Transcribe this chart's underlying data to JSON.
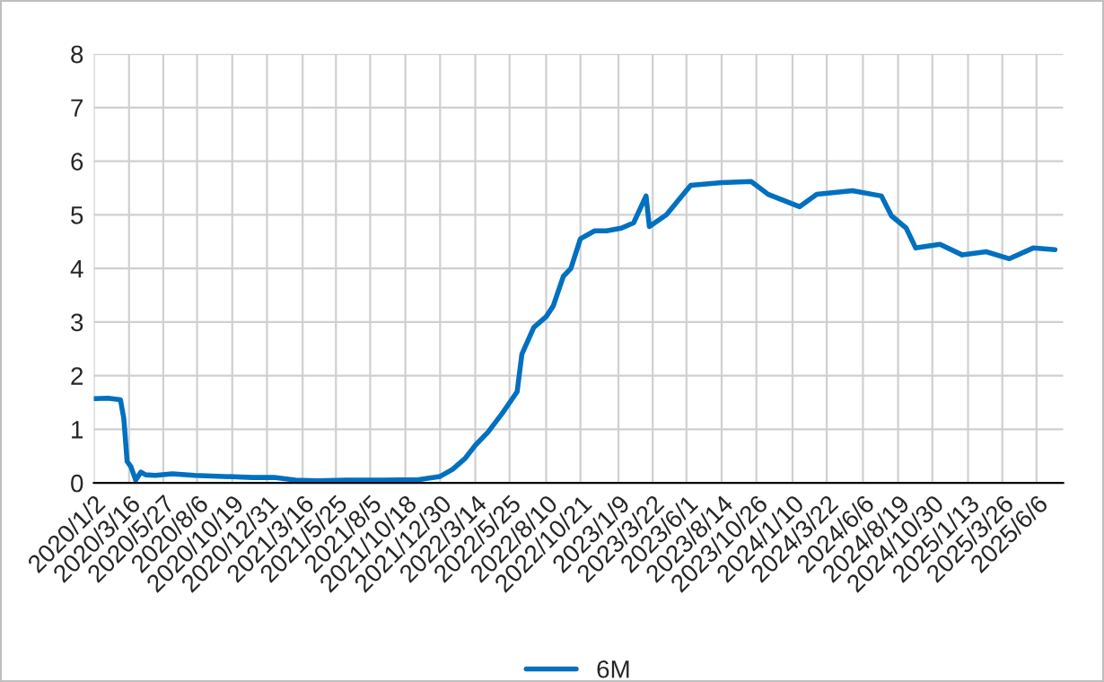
{
  "chart_data": {
    "type": "line",
    "legend": "bottom",
    "grid": true,
    "xlim": [
      "2020-01-02",
      "2025-08-01"
    ],
    "xticks": [
      {
        "value": "2020-01-02",
        "label": "2020/1/2"
      },
      {
        "value": "2020-03-16",
        "label": "2020/3/16"
      },
      {
        "value": "2020-05-27",
        "label": "2020/5/27"
      },
      {
        "value": "2020-08-06",
        "label": "2020/8/6"
      },
      {
        "value": "2020-10-19",
        "label": "2020/10/19"
      },
      {
        "value": "2020-12-31",
        "label": "2020/12/31"
      },
      {
        "value": "2021-03-16",
        "label": "2021/3/16"
      },
      {
        "value": "2021-05-25",
        "label": "2021/5/25"
      },
      {
        "value": "2021-08-05",
        "label": "2021/8/5"
      },
      {
        "value": "2021-10-18",
        "label": "2021/10/18"
      },
      {
        "value": "2021-12-30",
        "label": "2021/12/30"
      },
      {
        "value": "2022-03-14",
        "label": "2022/3/14"
      },
      {
        "value": "2022-05-25",
        "label": "2022/5/25"
      },
      {
        "value": "2022-08-10",
        "label": "2022/8/10"
      },
      {
        "value": "2022-10-21",
        "label": "2022/10/21"
      },
      {
        "value": "2023-01-09",
        "label": "2023/1/9"
      },
      {
        "value": "2023-03-22",
        "label": "2023/3/22"
      },
      {
        "value": "2023-06-01",
        "label": "2023/6/1"
      },
      {
        "value": "2023-08-14",
        "label": "2023/8/14"
      },
      {
        "value": "2023-10-26",
        "label": "2023/10/26"
      },
      {
        "value": "2024-01-10",
        "label": "2024/1/10"
      },
      {
        "value": "2024-03-22",
        "label": "2024/3/22"
      },
      {
        "value": "2024-06-06",
        "label": "2024/6/6"
      },
      {
        "value": "2024-08-19",
        "label": "2024/8/19"
      },
      {
        "value": "2024-10-30",
        "label": "2024/10/30"
      },
      {
        "value": "2025-01-13",
        "label": "2025/1/13"
      },
      {
        "value": "2025-03-26",
        "label": "2025/3/26"
      },
      {
        "value": "2025-06-06",
        "label": "2025/6/6"
      }
    ],
    "ylim": [
      0,
      8
    ],
    "yticks": [
      0,
      1,
      2,
      3,
      4,
      5,
      6,
      7,
      8
    ],
    "x": [
      "2020-01-02",
      "2020-02-01",
      "2020-02-27",
      "2020-03-05",
      "2020-03-12",
      "2020-03-20",
      "2020-03-30",
      "2020-04-10",
      "2020-04-20",
      "2020-05-10",
      "2020-06-15",
      "2020-08-01",
      "2020-10-01",
      "2020-12-01",
      "2021-01-15",
      "2021-03-01",
      "2021-04-15",
      "2021-06-15",
      "2021-09-01",
      "2021-11-15",
      "2021-12-30",
      "2022-01-25",
      "2022-02-20",
      "2022-03-14",
      "2022-04-10",
      "2022-05-10",
      "2022-06-10",
      "2022-06-20",
      "2022-07-15",
      "2022-08-10",
      "2022-08-25",
      "2022-09-15",
      "2022-10-01",
      "2022-10-21",
      "2022-11-20",
      "2022-12-15",
      "2023-01-15",
      "2023-02-10",
      "2023-03-08",
      "2023-03-15",
      "2023-04-20",
      "2023-06-10",
      "2023-08-14",
      "2023-10-15",
      "2023-11-20",
      "2024-01-25",
      "2024-03-01",
      "2024-05-15",
      "2024-07-15",
      "2024-08-05",
      "2024-09-05",
      "2024-09-25",
      "2024-11-15",
      "2025-01-01",
      "2025-02-20",
      "2025-04-10",
      "2025-05-30",
      "2025-07-15"
    ],
    "series": [
      {
        "name": "6M",
        "color": "#0070c0",
        "values": [
          1.57,
          1.58,
          1.55,
          1.2,
          0.4,
          0.3,
          0.05,
          0.2,
          0.15,
          0.14,
          0.17,
          0.14,
          0.12,
          0.1,
          0.1,
          0.05,
          0.04,
          0.05,
          0.05,
          0.06,
          0.12,
          0.25,
          0.45,
          0.7,
          0.95,
          1.3,
          1.7,
          2.4,
          2.9,
          3.1,
          3.3,
          3.85,
          4.0,
          4.55,
          4.7,
          4.7,
          4.75,
          4.85,
          5.35,
          4.78,
          5.0,
          5.55,
          5.6,
          5.62,
          5.38,
          5.15,
          5.38,
          5.45,
          5.35,
          4.98,
          4.75,
          4.38,
          4.45,
          4.25,
          4.31,
          4.18,
          4.38,
          4.35
        ]
      }
    ]
  }
}
